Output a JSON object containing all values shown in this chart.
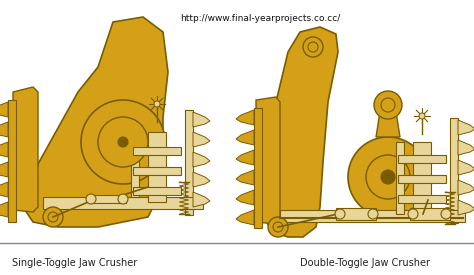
{
  "background_color": "#ffffff",
  "border_color": "#888888",
  "url_text": "http://www.final-yearprojects.co.cc/",
  "url_color": "#111111",
  "label_left": "Single-Toggle Jaw Crusher",
  "label_right": "Double-Toggle Jaw Crusher",
  "label_color": "#222222",
  "fig_width": 4.74,
  "fig_height": 2.75,
  "dpi": 100,
  "main_color": "#D4A017",
  "dark_outline": "#7A5C00",
  "light_tan": "#E8D59A",
  "white_bg": "#ffffff"
}
